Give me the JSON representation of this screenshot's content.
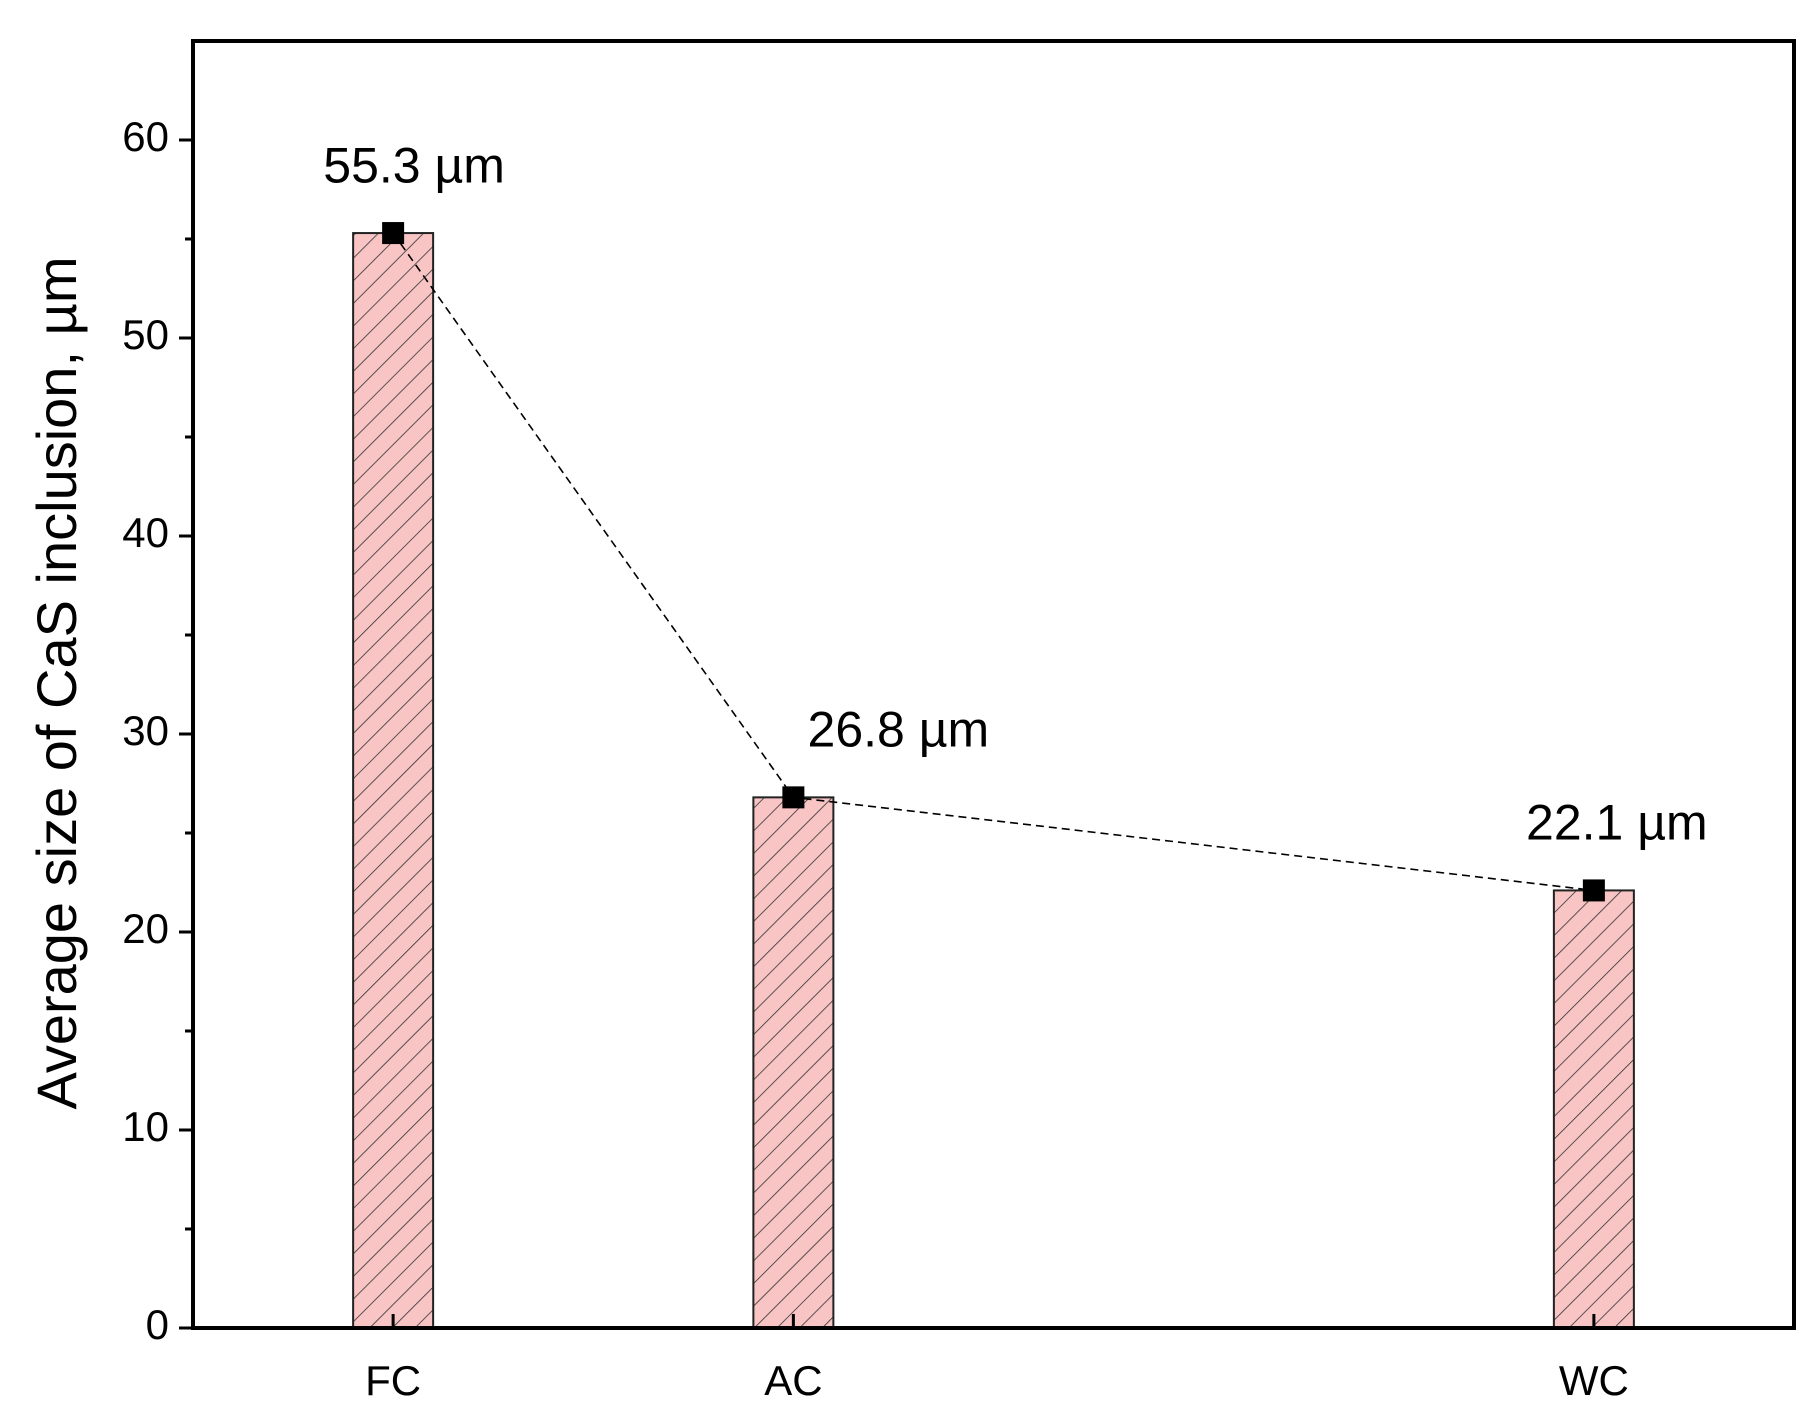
{
  "chart_data": {
    "type": "bar",
    "categories": [
      "FC",
      "AC",
      "WC"
    ],
    "values": [
      55.3,
      26.8,
      22.1
    ],
    "value_labels": [
      "55.3 µm",
      "26.8 µm",
      "22.1 µm"
    ],
    "color": "#f8c4c4",
    "ylabel": "Average size of CaS inclusion,  µm",
    "ylim": [
      0,
      65
    ],
    "yticks": [
      0,
      10,
      20,
      30,
      40,
      50,
      60
    ],
    "connect_line": true
  }
}
